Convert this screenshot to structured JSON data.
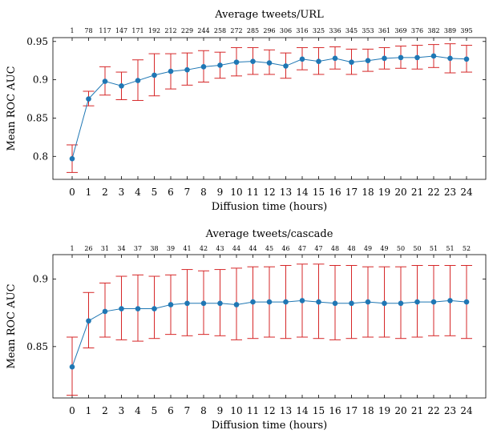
{
  "colors": {
    "series": "#1f77b4",
    "errorbar": "#d62728"
  },
  "chart_data": [
    {
      "type": "line",
      "title": "Average tweets/URL",
      "xlabel": "Diffusion time (hours)",
      "ylabel": "Mean ROC AUC",
      "x": [
        0,
        1,
        2,
        3,
        4,
        5,
        6,
        7,
        8,
        9,
        10,
        11,
        12,
        13,
        14,
        15,
        16,
        17,
        18,
        19,
        20,
        21,
        22,
        23,
        24
      ],
      "top_axis_labels": [
        "1",
        "78",
        "117",
        "147",
        "171",
        "192",
        "212",
        "229",
        "244",
        "258",
        "272",
        "285",
        "296",
        "306",
        "316",
        "325",
        "336",
        "345",
        "353",
        "361",
        "369",
        "376",
        "382",
        "389",
        "395"
      ],
      "ylim": [
        0.77,
        0.955
      ],
      "yticks": [
        0.8,
        0.85,
        0.9,
        0.95
      ],
      "ytick_labels": [
        "0.8",
        "0.85",
        "0.9",
        "0.95"
      ],
      "values": [
        0.797,
        0.875,
        0.898,
        0.892,
        0.899,
        0.906,
        0.911,
        0.913,
        0.917,
        0.919,
        0.923,
        0.924,
        0.922,
        0.918,
        0.927,
        0.924,
        0.928,
        0.923,
        0.925,
        0.928,
        0.929,
        0.929,
        0.931,
        0.928,
        0.927
      ],
      "err_low": [
        0.779,
        0.866,
        0.88,
        0.874,
        0.873,
        0.879,
        0.888,
        0.893,
        0.897,
        0.902,
        0.905,
        0.907,
        0.907,
        0.902,
        0.913,
        0.907,
        0.914,
        0.907,
        0.911,
        0.914,
        0.915,
        0.914,
        0.916,
        0.909,
        0.91
      ],
      "err_high": [
        0.815,
        0.885,
        0.917,
        0.91,
        0.926,
        0.934,
        0.934,
        0.935,
        0.938,
        0.936,
        0.942,
        0.942,
        0.939,
        0.935,
        0.942,
        0.942,
        0.943,
        0.94,
        0.94,
        0.942,
        0.944,
        0.945,
        0.946,
        0.947,
        0.945
      ],
      "grid": false
    },
    {
      "type": "line",
      "title": "Average tweets/cascade",
      "xlabel": "Diffusion time (hours)",
      "ylabel": "Mean ROC AUC",
      "x": [
        0,
        1,
        2,
        3,
        4,
        5,
        6,
        7,
        8,
        9,
        10,
        11,
        12,
        13,
        14,
        15,
        16,
        17,
        18,
        19,
        20,
        21,
        22,
        23,
        24
      ],
      "top_axis_labels": [
        "1",
        "26",
        "31",
        "34",
        "37",
        "38",
        "39",
        "41",
        "42",
        "43",
        "44",
        "44",
        "45",
        "46",
        "47",
        "47",
        "48",
        "48",
        "49",
        "49",
        "50",
        "50",
        "51",
        "51",
        "52"
      ],
      "ylim": [
        0.812,
        0.918
      ],
      "yticks": [
        0.85,
        0.9
      ],
      "ytick_labels": [
        "0.85",
        "0.9"
      ],
      "values": [
        0.835,
        0.869,
        0.876,
        0.878,
        0.878,
        0.878,
        0.881,
        0.882,
        0.882,
        0.882,
        0.881,
        0.883,
        0.883,
        0.883,
        0.884,
        0.883,
        0.882,
        0.882,
        0.883,
        0.882,
        0.882,
        0.883,
        0.883,
        0.884,
        0.883
      ],
      "err_low": [
        0.814,
        0.849,
        0.857,
        0.855,
        0.854,
        0.856,
        0.859,
        0.858,
        0.859,
        0.858,
        0.855,
        0.856,
        0.857,
        0.856,
        0.857,
        0.856,
        0.855,
        0.856,
        0.857,
        0.857,
        0.856,
        0.857,
        0.858,
        0.858,
        0.856
      ],
      "err_high": [
        0.857,
        0.89,
        0.897,
        0.902,
        0.903,
        0.902,
        0.903,
        0.907,
        0.906,
        0.907,
        0.908,
        0.909,
        0.909,
        0.91,
        0.911,
        0.911,
        0.91,
        0.91,
        0.909,
        0.909,
        0.909,
        0.91,
        0.91,
        0.91,
        0.91
      ],
      "grid": false
    }
  ]
}
